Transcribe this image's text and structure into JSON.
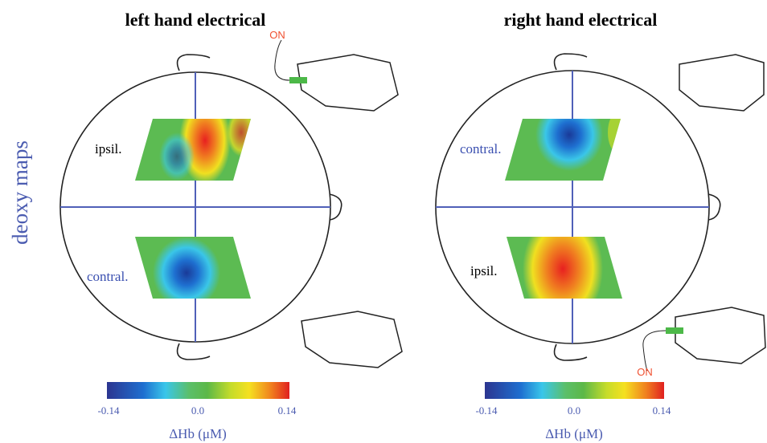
{
  "y_label": "deoxy maps",
  "panels": [
    {
      "title": "left hand electrical",
      "stim_label": "ON",
      "upper_label": "ipsil.",
      "lower_label": "contral.",
      "colorbar": {
        "ticks": [
          "-0.14",
          "0.0",
          "0.14"
        ],
        "label": "ΔHb (μM)"
      }
    },
    {
      "title": "right hand electrical",
      "stim_label": "ON",
      "upper_label": "contral.",
      "lower_label": "ipsil.",
      "colorbar": {
        "ticks": [
          "-0.14",
          "0.0",
          "0.14"
        ],
        "label": "ΔHb (μM)"
      }
    }
  ]
}
